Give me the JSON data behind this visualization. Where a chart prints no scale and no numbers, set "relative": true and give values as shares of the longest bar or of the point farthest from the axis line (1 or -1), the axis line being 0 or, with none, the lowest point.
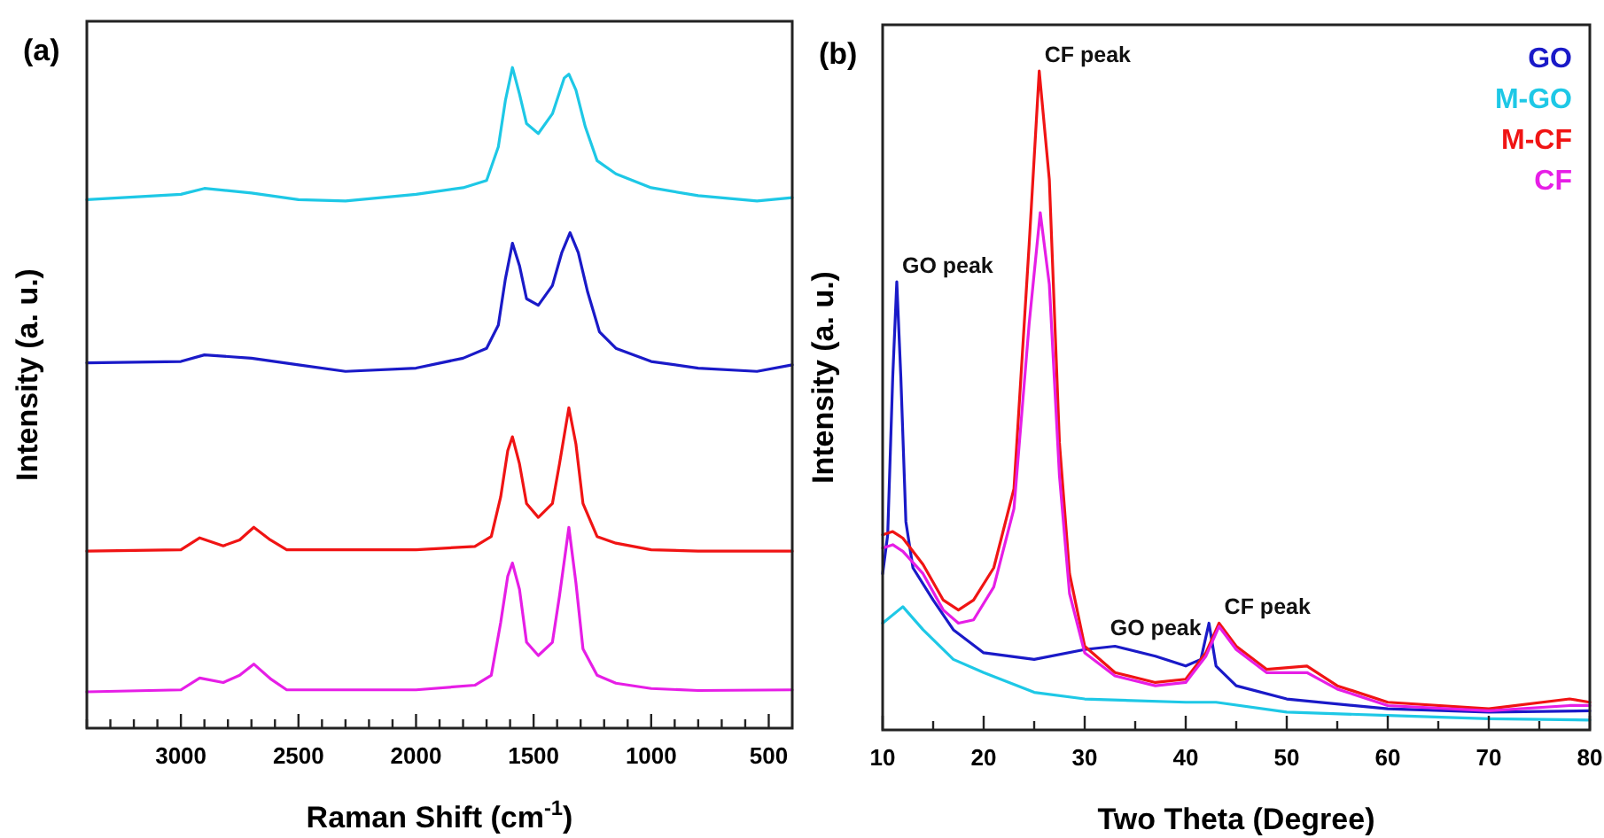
{
  "chart_data": [
    {
      "type": "line",
      "title": "(a)",
      "xlabel": "Raman Shift (cm$^{-1}$)",
      "ylabel": "Intensity (a. u.)",
      "relative": true,
      "xlim": [
        3400,
        400
      ],
      "xticks": [
        {
          "value": 3400,
          "label": null
        },
        {
          "value": 3300,
          "label": null
        },
        {
          "value": 3200,
          "label": null
        },
        {
          "value": 3100,
          "label": null
        },
        3000,
        {
          "value": 2900,
          "label": null
        },
        {
          "value": 2800,
          "label": null
        },
        {
          "value": 2700,
          "label": null
        },
        {
          "value": 2600,
          "label": null
        },
        2500,
        {
          "value": 2400,
          "label": null
        },
        {
          "value": 2300,
          "label": null
        },
        {
          "value": 2200,
          "label": null
        },
        {
          "value": 2100,
          "label": null
        },
        2000,
        {
          "value": 1900,
          "label": null
        },
        {
          "value": 1800,
          "label": null
        },
        {
          "value": 1700,
          "label": null
        },
        {
          "value": 1600,
          "label": null
        },
        1500,
        {
          "value": 1400,
          "label": null
        },
        {
          "value": 1300,
          "label": null
        },
        {
          "value": 1200,
          "label": null
        },
        {
          "value": 1100,
          "label": null
        },
        1000,
        {
          "value": 900,
          "label": null
        },
        {
          "value": 800,
          "label": null
        },
        {
          "value": 700,
          "label": null
        },
        {
          "value": 600,
          "label": null
        },
        500
      ],
      "series": [
        {
          "color": "#1ec8e6",
          "x": [
            3400,
            3000,
            2900,
            2700,
            2500,
            2300,
            2000,
            1800,
            1700,
            1650,
            1620,
            1590,
            1560,
            1530,
            1480,
            1420,
            1370,
            1350,
            1320,
            1280,
            1230,
            1150,
            1000,
            800,
            550,
            400
          ],
          "values": [
            0.8,
            0.808,
            0.817,
            0.81,
            0.8,
            0.798,
            0.808,
            0.818,
            0.829,
            0.88,
            0.95,
            1.0,
            0.96,
            0.915,
            0.9,
            0.93,
            0.984,
            0.99,
            0.966,
            0.91,
            0.859,
            0.839,
            0.818,
            0.806,
            0.798,
            0.803
          ]
        },
        {
          "color": "#1a1ac8",
          "x": [
            3400,
            3000,
            2900,
            2700,
            2500,
            2300,
            2000,
            1800,
            1700,
            1650,
            1620,
            1590,
            1560,
            1530,
            1480,
            1420,
            1380,
            1345,
            1310,
            1270,
            1220,
            1150,
            1000,
            800,
            550,
            400
          ],
          "values": [
            0.553,
            0.555,
            0.565,
            0.56,
            0.55,
            0.54,
            0.545,
            0.56,
            0.575,
            0.61,
            0.68,
            0.734,
            0.7,
            0.65,
            0.64,
            0.67,
            0.72,
            0.75,
            0.72,
            0.66,
            0.6,
            0.575,
            0.555,
            0.545,
            0.54,
            0.55
          ]
        },
        {
          "color": "#f01414",
          "x": [
            3400,
            3000,
            2920,
            2820,
            2750,
            2690,
            2620,
            2550,
            2000,
            1750,
            1680,
            1640,
            1610,
            1590,
            1560,
            1530,
            1480,
            1420,
            1390,
            1350,
            1320,
            1290,
            1230,
            1150,
            1000,
            800,
            400
          ],
          "values": [
            0.268,
            0.27,
            0.288,
            0.276,
            0.285,
            0.304,
            0.285,
            0.27,
            0.27,
            0.275,
            0.29,
            0.35,
            0.42,
            0.441,
            0.4,
            0.34,
            0.319,
            0.34,
            0.4,
            0.485,
            0.43,
            0.34,
            0.29,
            0.28,
            0.27,
            0.268,
            0.268
          ]
        },
        {
          "color": "#e61ee6",
          "x": [
            3400,
            3000,
            2920,
            2820,
            2750,
            2690,
            2620,
            2550,
            2000,
            1750,
            1680,
            1640,
            1610,
            1590,
            1560,
            1530,
            1480,
            1420,
            1390,
            1350,
            1320,
            1290,
            1230,
            1150,
            1000,
            800,
            400
          ],
          "values": [
            0.055,
            0.058,
            0.076,
            0.069,
            0.08,
            0.097,
            0.075,
            0.058,
            0.058,
            0.065,
            0.08,
            0.16,
            0.23,
            0.25,
            0.21,
            0.13,
            0.11,
            0.13,
            0.2,
            0.304,
            0.22,
            0.12,
            0.08,
            0.068,
            0.06,
            0.057,
            0.058
          ]
        }
      ]
    },
    {
      "type": "line",
      "title": "(b)",
      "xlabel": "Two Theta (Degree)",
      "ylabel": "Intensity (a. u.)",
      "relative": true,
      "xlim": [
        10,
        80
      ],
      "legend": "top right",
      "xticks": [
        10,
        {
          "value": 15,
          "label": null
        },
        20,
        {
          "value": 25,
          "label": null
        },
        30,
        {
          "value": 35,
          "label": null
        },
        40,
        {
          "value": 45,
          "label": null
        },
        50,
        {
          "value": 55,
          "label": null
        },
        60,
        {
          "value": 65,
          "label": null
        },
        70,
        {
          "value": 75,
          "label": null
        },
        80
      ],
      "annotations": [
        {
          "text": "GO peak",
          "x": 11.4,
          "y": 0.68
        },
        {
          "text": "CF peak",
          "x": 25.5,
          "y": 1.0
        },
        {
          "text": "GO peak",
          "x": 32,
          "y": 0.13
        },
        {
          "text": "CF peak",
          "x": 43.3,
          "y": 0.162
        }
      ],
      "series": [
        {
          "name": "GO",
          "color": "#1a1ac8",
          "x": [
            10,
            10.5,
            11,
            11.4,
            11.8,
            12.3,
            13,
            15,
            17,
            20,
            25,
            30,
            33,
            37,
            40,
            41.5,
            42.3,
            43,
            45,
            50,
            60,
            70,
            80
          ],
          "values": [
            0.237,
            0.296,
            0.536,
            0.68,
            0.536,
            0.316,
            0.246,
            0.197,
            0.152,
            0.117,
            0.107,
            0.122,
            0.127,
            0.112,
            0.097,
            0.107,
            0.162,
            0.097,
            0.067,
            0.047,
            0.032,
            0.027,
            0.029
          ]
        },
        {
          "name": "M-GO",
          "color": "#1ec8e6",
          "x": [
            10,
            12,
            14,
            17,
            20,
            25,
            30,
            40,
            43,
            50,
            60,
            70,
            80
          ],
          "values": [
            0.162,
            0.187,
            0.152,
            0.107,
            0.087,
            0.057,
            0.047,
            0.042,
            0.042,
            0.027,
            0.022,
            0.017,
            0.015
          ]
        },
        {
          "name": "M-CF",
          "color": "#f01414",
          "x": [
            10,
            11,
            12,
            14,
            16,
            17.5,
            19,
            21,
            23,
            24.5,
            25.5,
            26.5,
            27.5,
            28.5,
            30,
            33,
            37,
            40,
            42,
            43.3,
            45,
            48,
            52,
            55,
            60,
            70,
            78,
            80
          ],
          "values": [
            0.296,
            0.301,
            0.291,
            0.251,
            0.197,
            0.182,
            0.197,
            0.246,
            0.366,
            0.736,
            1.0,
            0.835,
            0.436,
            0.237,
            0.127,
            0.087,
            0.072,
            0.077,
            0.117,
            0.162,
            0.127,
            0.092,
            0.097,
            0.067,
            0.042,
            0.032,
            0.047,
            0.042
          ]
        },
        {
          "name": "CF",
          "color": "#e61ee6",
          "x": [
            10,
            11,
            12,
            14,
            16,
            17.5,
            19,
            21,
            23,
            24.5,
            25.6,
            26.5,
            27.5,
            28.5,
            30,
            33,
            37,
            40,
            42,
            43.3,
            45,
            48,
            52,
            55,
            60,
            70,
            78,
            80
          ],
          "values": [
            0.276,
            0.281,
            0.271,
            0.237,
            0.182,
            0.162,
            0.167,
            0.217,
            0.336,
            0.616,
            0.785,
            0.676,
            0.386,
            0.207,
            0.117,
            0.082,
            0.067,
            0.072,
            0.112,
            0.157,
            0.122,
            0.087,
            0.087,
            0.062,
            0.037,
            0.029,
            0.037,
            0.037
          ]
        }
      ]
    }
  ]
}
